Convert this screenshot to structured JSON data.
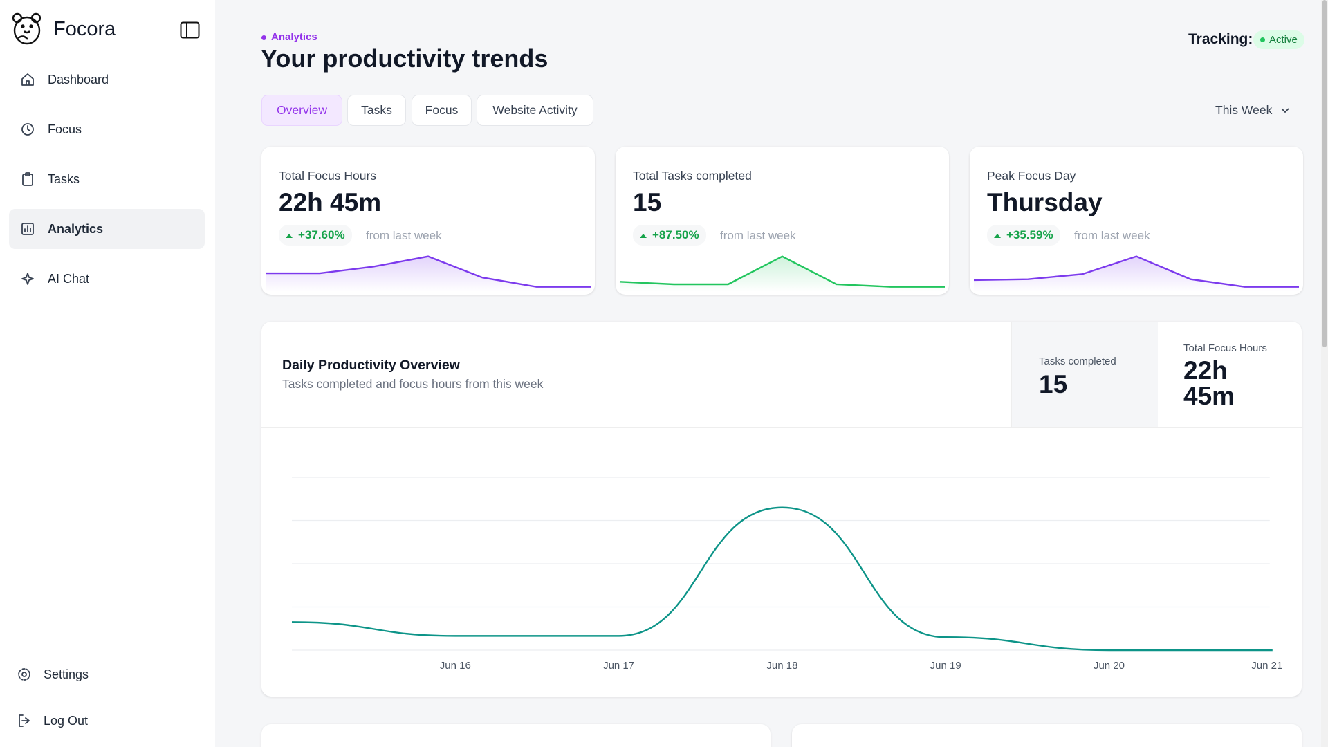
{
  "sidebar": {
    "brand": "Focora",
    "nav": [
      "Dashboard",
      "Focus",
      "Tasks",
      "Analytics",
      "AI Chat"
    ],
    "active": 3,
    "footer": [
      "Settings",
      "Log Out"
    ]
  },
  "header": {
    "breadcrumb": "Analytics",
    "title": "Your productivity trends",
    "tracking_label": "Tracking:",
    "tracking_status": "Active"
  },
  "tabs": {
    "items": [
      "Overview",
      "Tasks",
      "Focus",
      "Website Activity"
    ],
    "active": 0,
    "range": "This Week"
  },
  "stat_cards": [
    {
      "label": "Total Focus Hours",
      "value": "22h 45m",
      "change": "+37.60%",
      "change_note": "from last week",
      "sparkline": {
        "color": "#7c3aed",
        "values": [
          22,
          22,
          30,
          42,
          17,
          6,
          6
        ]
      }
    },
    {
      "label": "Total Tasks completed",
      "value": "15",
      "change": "+87.50%",
      "change_note": "from last week",
      "sparkline": {
        "color": "#22c55e",
        "values": [
          12,
          9,
          9,
          42,
          9,
          6,
          6
        ]
      }
    },
    {
      "label": "Peak Focus Day",
      "value": "Thursday",
      "change": "+35.59%",
      "change_note": "from last week",
      "sparkline": {
        "color": "#7c3aed",
        "values": [
          14,
          15,
          21,
          42,
          15,
          6,
          6
        ]
      }
    }
  ],
  "sparkline_ylim": [
    0,
    45
  ],
  "overview": {
    "title": "Daily Productivity Overview",
    "subtitle": "Tasks completed and focus hours from this week",
    "stats": [
      {
        "label": "Tasks completed",
        "value": "15"
      },
      {
        "label": "Total Focus Hours",
        "value": "22h 45m"
      }
    ]
  },
  "chart_data": {
    "type": "line",
    "categories": [
      null,
      "Jun 16",
      "Jun 17",
      "Jun 18",
      "Jun 19",
      "Jun 20",
      "Jun 21"
    ],
    "values": [
      0.65,
      0.33,
      0.33,
      3.3,
      0.3,
      0,
      0
    ],
    "color": "#0d9488",
    "ylim": [
      0,
      4
    ],
    "grid_lines": [
      0,
      1,
      2,
      3,
      4
    ],
    "grid": true
  }
}
